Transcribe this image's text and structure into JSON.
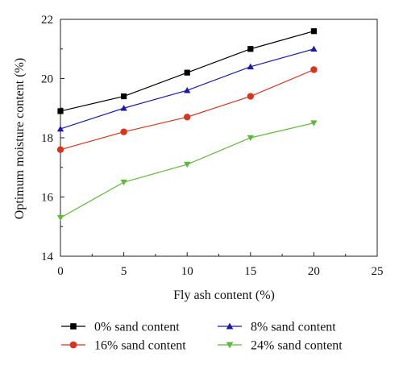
{
  "chart_data": {
    "type": "line",
    "title": "",
    "xlabel": "Fly ash content (%)",
    "ylabel": "Optimum moisture content (%)",
    "xlim": [
      0,
      25
    ],
    "ylim": [
      14,
      22
    ],
    "xticks": [
      0,
      5,
      10,
      15,
      20,
      25
    ],
    "yticks": [
      14,
      16,
      18,
      20,
      22
    ],
    "grid": false,
    "legend_position": "bottom",
    "x": [
      0,
      5,
      10,
      15,
      20
    ],
    "series": [
      {
        "name": "0% sand content",
        "values": [
          18.9,
          19.4,
          20.2,
          21.0,
          21.6
        ],
        "color": "#000000",
        "marker": "square"
      },
      {
        "name": "8% sand content",
        "values": [
          18.3,
          19.0,
          19.6,
          20.4,
          21.0
        ],
        "color": "#1a1aa6",
        "marker": "triangle-up"
      },
      {
        "name": "16% sand content",
        "values": [
          17.6,
          18.2,
          18.7,
          19.4,
          20.3
        ],
        "color": "#d8351f",
        "marker": "circle"
      },
      {
        "name": "24% sand content",
        "values": [
          15.3,
          16.5,
          17.1,
          18.0,
          18.5
        ],
        "color": "#5fb83a",
        "marker": "triangle-down"
      }
    ]
  }
}
